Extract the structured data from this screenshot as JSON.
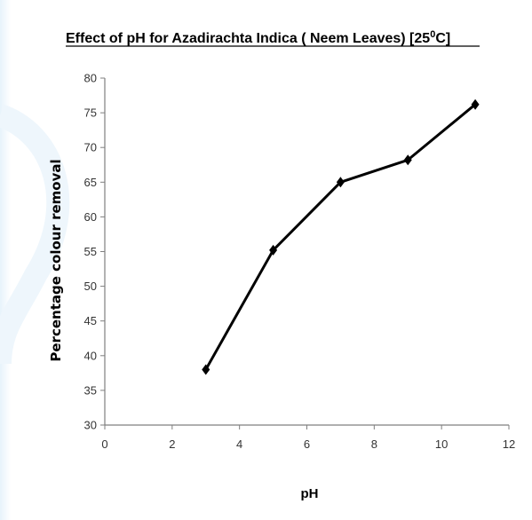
{
  "colors": {
    "line": "#000000",
    "marker": "#000000",
    "axis": "#7f7f7f",
    "accent": "#e7f3fb"
  },
  "chart_data": {
    "type": "line",
    "title": "Effect of pH for Azadirachta Indica ( Neem Leaves) [25",
    "title_superscript": "0",
    "title_suffix": "C]",
    "xlabel": "pH",
    "ylabel": "Percentage colour removal",
    "xlim": [
      0,
      12
    ],
    "ylim": [
      30,
      80
    ],
    "xticks": [
      0,
      2,
      4,
      6,
      8,
      10,
      12
    ],
    "yticks": [
      30,
      35,
      40,
      45,
      50,
      55,
      60,
      65,
      70,
      75,
      80
    ],
    "grid": false,
    "legend": "none",
    "marker": "diamond",
    "series": [
      {
        "x": [
          3,
          5,
          7,
          9,
          11
        ],
        "y": [
          38,
          55.2,
          65,
          68.2,
          76.2
        ]
      }
    ]
  }
}
